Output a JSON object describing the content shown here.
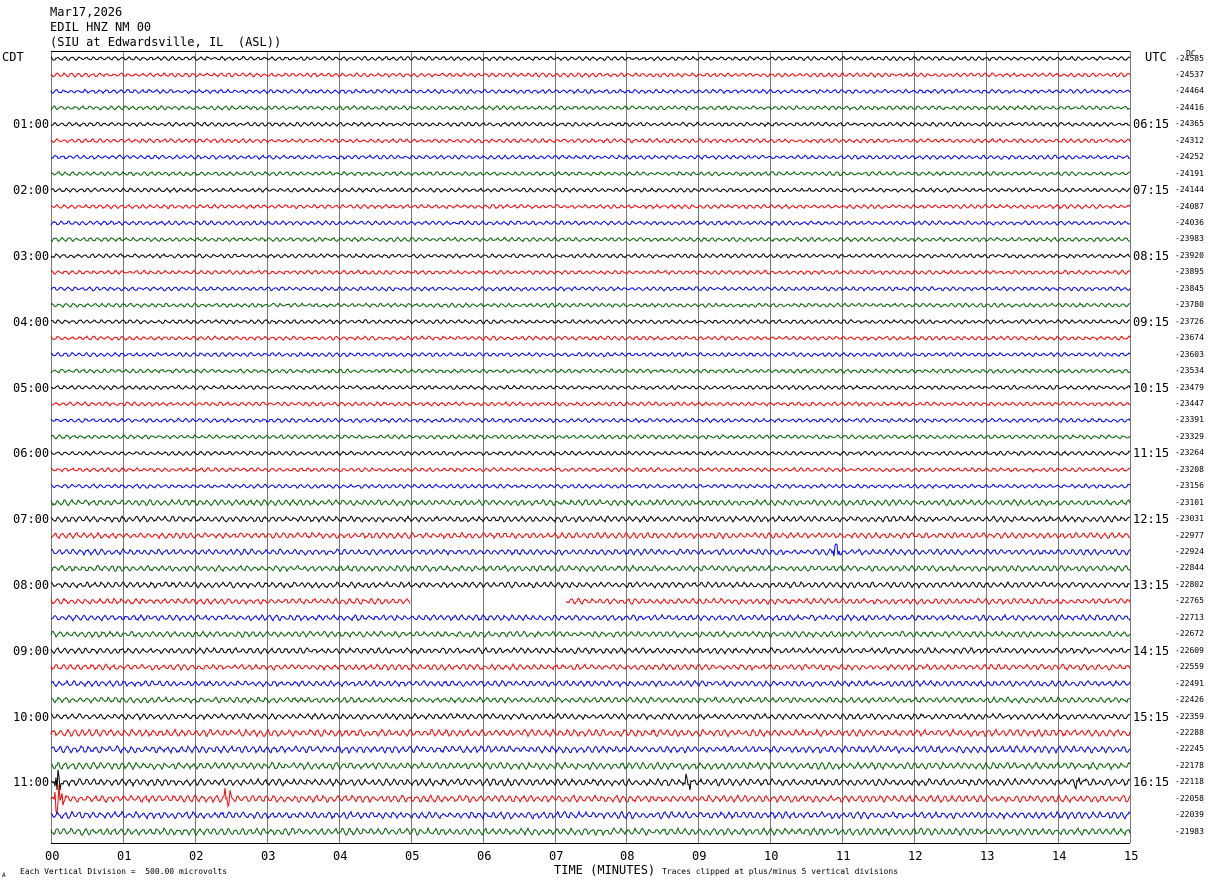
{
  "header": {
    "date": "Mar17,2026",
    "station": "EDIL HNZ NM 00",
    "location": "(SIU at Edwardsville, IL  (ASL))"
  },
  "left_tz": "CDT",
  "right_tz": "UTC",
  "dc_label": "DC",
  "left_times": [
    "01:00",
    "02:00",
    "03:00",
    "04:00",
    "05:00",
    "06:00",
    "07:00",
    "08:00",
    "09:00",
    "10:00",
    "11:00"
  ],
  "right_times": [
    "06:15",
    "07:15",
    "08:15",
    "09:15",
    "10:15",
    "11:15",
    "12:15",
    "13:15",
    "14:15",
    "15:15",
    "16:15"
  ],
  "dc_offsets": [
    "-24585",
    "-24537",
    "-24464",
    "-24416",
    "-24365",
    "-24312",
    "-24252",
    "-24191",
    "-24144",
    "-24087",
    "-24036",
    "-23983",
    "-23920",
    "-23895",
    "-23845",
    "-23780",
    "-23726",
    "-23674",
    "-23603",
    "-23534",
    "-23479",
    "-23447",
    "-23391",
    "-23329",
    "-23264",
    "-23208",
    "-23156",
    "-23101",
    "-23031",
    "-22977",
    "-22924",
    "-22844",
    "-22802",
    "-22765",
    "-22713",
    "-22672",
    "-22609",
    "-22559",
    "-22491",
    "-22426",
    "-22359",
    "-22288",
    "-22245",
    "-22178",
    "-22118",
    "-22058",
    "-22039",
    "-21983"
  ],
  "footer": {
    "scale_note": "Each Vertical Division =  500.00 microvolts",
    "clip_note": "Traces clipped at plus/minus 5 vertical divisions",
    "corner_mark": "A"
  },
  "chart_data": {
    "type": "line",
    "title": "EDIL HNZ NM 00",
    "xlabel": "TIME (MINUTES)",
    "ylabel": "",
    "x_ticks": [
      "00",
      "01",
      "02",
      "03",
      "04",
      "05",
      "06",
      "07",
      "08",
      "09",
      "10",
      "11",
      "12",
      "13",
      "14",
      "15"
    ],
    "xlim": [
      0,
      15
    ],
    "trace_colors": [
      "#000000",
      "#ff0000",
      "#0000ff",
      "#006400"
    ],
    "trace_count": 48,
    "minutes_per_trace": 15,
    "data_gap": {
      "trace_index": 33,
      "start_min": 5.0,
      "end_min": 7.15
    },
    "events": [
      {
        "trace_index": 30,
        "minute": 10.9,
        "amplitude": 2.5
      },
      {
        "trace_index": 44,
        "minute": 0.1,
        "amplitude": 4.5
      },
      {
        "trace_index": 45,
        "minute": 0.1,
        "amplitude": 5
      },
      {
        "trace_index": 45,
        "minute": 2.45,
        "amplitude": 4
      },
      {
        "trace_index": 44,
        "minute": 8.85,
        "amplitude": 3
      },
      {
        "trace_index": 44,
        "minute": 14.3,
        "amplitude": 3
      }
    ]
  }
}
